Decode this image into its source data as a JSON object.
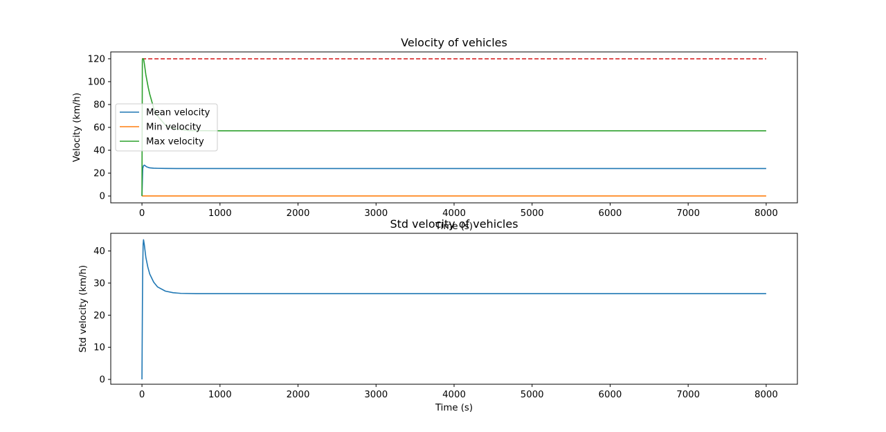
{
  "chart_data": [
    {
      "type": "line",
      "title": "Velocity of vehicles",
      "xlabel": "Time (s)",
      "ylabel": "Velocity (km/h)",
      "xlim": [
        -400,
        8400
      ],
      "ylim": [
        -6,
        126
      ],
      "xticks": [
        0,
        1000,
        2000,
        3000,
        4000,
        5000,
        6000,
        7000,
        8000
      ],
      "yticks": [
        0,
        20,
        40,
        60,
        80,
        100,
        120
      ],
      "grid": false,
      "legend": "center-left",
      "reference_line": {
        "y": 120,
        "style": "dashed",
        "color": "#d62728"
      },
      "series": [
        {
          "name": "Mean velocity",
          "color": "#1f77b4",
          "x": [
            0,
            5,
            10,
            20,
            30,
            40,
            50,
            60,
            80,
            100,
            150,
            200,
            300,
            500,
            1000,
            8000
          ],
          "y": [
            0,
            12,
            24,
            26.5,
            27,
            26.5,
            26,
            25.5,
            25,
            24.6,
            24.3,
            24.2,
            24.1,
            24,
            24,
            24
          ]
        },
        {
          "name": "Min velocity",
          "color": "#ff7f0e",
          "x": [
            0,
            8000
          ],
          "y": [
            0,
            0
          ]
        },
        {
          "name": "Max velocity",
          "color": "#2ca02c",
          "x": [
            0,
            5,
            10,
            20,
            30,
            50,
            80,
            100,
            150,
            200,
            300,
            400,
            600,
            1000,
            8000
          ],
          "y": [
            0,
            119,
            120,
            120,
            116,
            106,
            95,
            89,
            77,
            70,
            62,
            59,
            57.2,
            57,
            57
          ]
        }
      ]
    },
    {
      "type": "line",
      "title": "Std velocity of vehicles",
      "xlabel": "Time (s)",
      "ylabel": "Std velocity (km/h)",
      "xlim": [
        -400,
        8400
      ],
      "ylim": [
        -1.5,
        45.5
      ],
      "xticks": [
        0,
        1000,
        2000,
        3000,
        4000,
        5000,
        6000,
        7000,
        8000
      ],
      "yticks": [
        0,
        10,
        20,
        30,
        40
      ],
      "grid": false,
      "series": [
        {
          "color": "#1f77b4",
          "x": [
            0,
            3,
            6,
            10,
            15,
            20,
            30,
            50,
            75,
            100,
            150,
            200,
            300,
            400,
            500,
            700,
            1000,
            8000
          ],
          "y": [
            0,
            12,
            24,
            35,
            42,
            43.5,
            42,
            38,
            35,
            32.8,
            30.3,
            28.8,
            27.5,
            27,
            26.8,
            26.7,
            26.7,
            26.7
          ]
        }
      ]
    }
  ]
}
